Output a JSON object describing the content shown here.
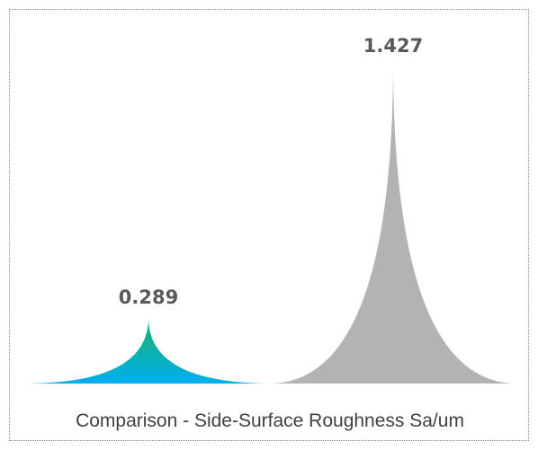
{
  "chart_data": {
    "type": "bar",
    "title": "",
    "xlabel": "Comparison - Side-Surface Roughness Sa/um",
    "ylabel": "",
    "categories": [
      "",
      ""
    ],
    "values": [
      0.289,
      1.427
    ],
    "value_labels": [
      "0.289",
      "1.427"
    ],
    "bar_shape": "peaked",
    "bar_styles": [
      {
        "fill": "gradient",
        "gradient_top": "#1bb36a",
        "gradient_bottom": "#00aeef"
      },
      {
        "fill": "solid",
        "color": "#b3b3b3"
      }
    ],
    "ylim": [
      0,
      1.5
    ],
    "grid": false,
    "legend": "none"
  },
  "colors": {
    "value_label": "#595959",
    "axis_label": "#404040",
    "frame_border": "#8a8a8a",
    "background": "#ffffff"
  }
}
